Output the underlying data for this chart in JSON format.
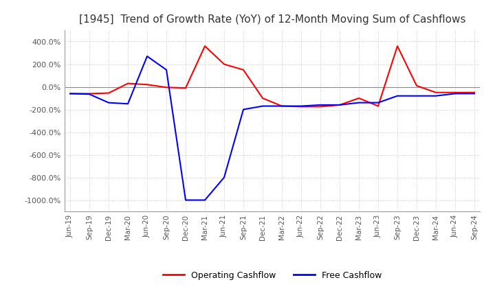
{
  "title": "[1945]  Trend of Growth Rate (YoY) of 12-Month Moving Sum of Cashflows",
  "title_fontsize": 11,
  "ylim": [
    -1100,
    500
  ],
  "yticks": [
    400,
    200,
    0,
    -200,
    -400,
    -600,
    -800,
    -1000
  ],
  "background_color": "#ffffff",
  "grid_color": "#bbbbbb",
  "legend_labels": [
    "Operating Cashflow",
    "Free Cashflow"
  ],
  "legend_colors": [
    "#ff0000",
    "#0000ff"
  ],
  "x_labels": [
    "Jun-19",
    "Sep-19",
    "Dec-19",
    "Mar-20",
    "Jun-20",
    "Sep-20",
    "Dec-20",
    "Mar-21",
    "Jun-21",
    "Sep-21",
    "Dec-21",
    "Mar-22",
    "Jun-22",
    "Sep-22",
    "Dec-22",
    "Mar-23",
    "Jun-23",
    "Sep-23",
    "Dec-23",
    "Mar-24",
    "Jun-24",
    "Sep-24"
  ],
  "operating_cashflow": [
    -60,
    -60,
    -55,
    30,
    20,
    -5,
    -10,
    360,
    200,
    150,
    -100,
    -170,
    -175,
    -175,
    -160,
    -100,
    -170,
    360,
    10,
    -50,
    -50,
    -50
  ],
  "free_cashflow": [
    -60,
    -65,
    -140,
    -150,
    270,
    150,
    -1000,
    -1000,
    -800,
    -200,
    -170,
    -170,
    -170,
    -160,
    -160,
    -140,
    -140,
    -80,
    -80,
    -80,
    -60,
    -60
  ]
}
